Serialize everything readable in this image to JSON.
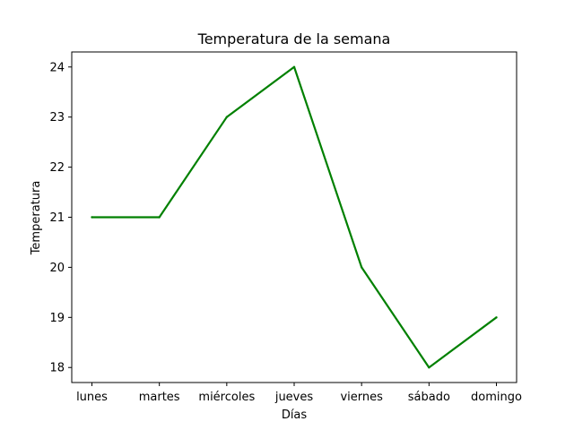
{
  "chart_data": {
    "type": "line",
    "title": "Temperatura de la semana",
    "xlabel": "Días",
    "ylabel": "Temperatura",
    "categories": [
      "lunes",
      "martes",
      "miércoles",
      "jueves",
      "viernes",
      "sábado",
      "domingo"
    ],
    "series": [
      {
        "values": [
          21,
          21,
          23,
          24,
          20,
          18,
          19
        ],
        "color": "#008000"
      }
    ],
    "yticks": [
      18,
      19,
      20,
      21,
      22,
      23,
      24
    ],
    "ylim": [
      17.7,
      24.3
    ],
    "grid": false,
    "legend": false
  }
}
